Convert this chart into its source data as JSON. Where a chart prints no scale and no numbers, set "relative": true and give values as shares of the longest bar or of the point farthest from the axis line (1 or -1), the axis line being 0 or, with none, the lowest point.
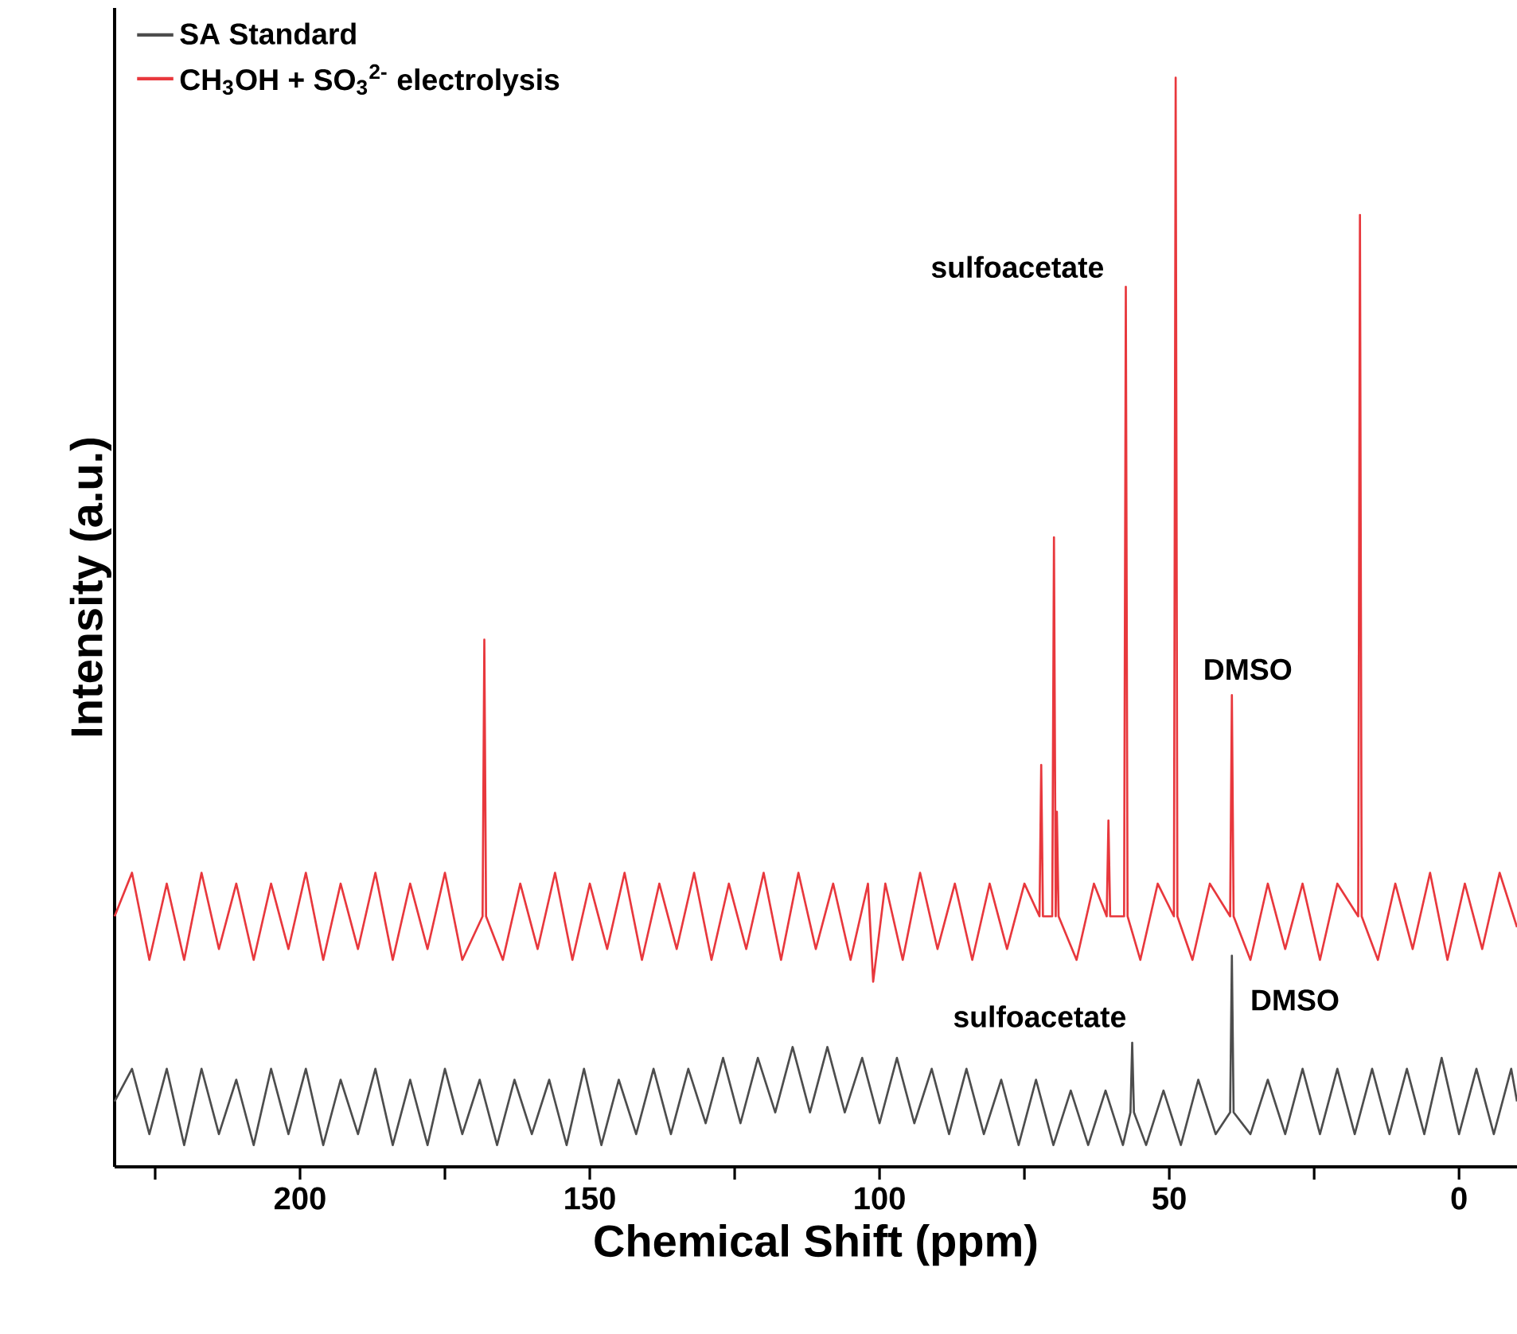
{
  "chart_data": {
    "type": "line",
    "relative": true,
    "xlabel": "Chemical Shift (ppm)",
    "ylabel": "Intensity (a.u.)",
    "xlim": [
      232,
      -10
    ],
    "xticks": [
      {
        "value": 225,
        "label": null
      },
      200,
      {
        "value": 175,
        "label": null
      },
      150,
      {
        "value": 125,
        "label": null
      },
      100,
      {
        "value": 75,
        "label": null
      },
      50,
      {
        "value": 25,
        "label": null
      },
      0
    ],
    "legend": "top left",
    "series": [
      {
        "name": "SA Standard",
        "color": "#4d4d4d",
        "x": [
          232,
          229,
          226,
          223,
          220,
          217,
          214,
          211,
          208,
          205,
          202,
          199,
          196,
          193,
          190,
          187,
          184,
          181,
          178,
          175,
          172,
          169,
          166,
          163,
          160,
          157,
          154,
          151,
          148,
          145,
          142,
          139,
          136,
          133,
          130,
          127,
          124,
          121,
          118,
          115,
          112,
          109,
          106,
          103,
          100,
          97,
          94,
          91,
          88,
          85,
          82,
          79,
          76,
          73,
          70,
          67,
          64,
          61,
          58,
          56.7,
          56.4,
          56.1,
          54,
          51,
          48,
          45,
          42,
          39.5,
          39.2,
          38.9,
          36,
          33,
          30,
          27,
          24,
          21,
          18,
          15,
          12,
          9,
          6,
          3,
          0,
          -3,
          -6,
          -9,
          -10
        ],
        "values": [
          0.06,
          0.09,
          0.03,
          0.09,
          0.02,
          0.09,
          0.03,
          0.08,
          0.02,
          0.09,
          0.03,
          0.09,
          0.02,
          0.08,
          0.03,
          0.09,
          0.02,
          0.08,
          0.02,
          0.09,
          0.03,
          0.08,
          0.02,
          0.08,
          0.03,
          0.08,
          0.02,
          0.09,
          0.02,
          0.08,
          0.03,
          0.09,
          0.03,
          0.09,
          0.04,
          0.1,
          0.04,
          0.1,
          0.05,
          0.11,
          0.05,
          0.11,
          0.05,
          0.1,
          0.04,
          0.1,
          0.04,
          0.09,
          0.03,
          0.09,
          0.03,
          0.08,
          0.02,
          0.08,
          0.02,
          0.07,
          0.02,
          0.07,
          0.02,
          0.05,
          0.114,
          0.05,
          0.02,
          0.07,
          0.02,
          0.08,
          0.03,
          0.05,
          0.194,
          0.05,
          0.03,
          0.08,
          0.03,
          0.09,
          0.03,
          0.09,
          0.03,
          0.09,
          0.03,
          0.09,
          0.03,
          0.1,
          0.03,
          0.09,
          0.03,
          0.09,
          0.06
        ]
      },
      {
        "name": "CH$_{3}$OH + SO$_{3}$$^{2-}$ electrolysis",
        "color": "#e8383d",
        "x": [
          232,
          229,
          226,
          223,
          220,
          217,
          214,
          211,
          208,
          205,
          202,
          199,
          196,
          193,
          190,
          187,
          184,
          181,
          178,
          175,
          172,
          168.5,
          168.2,
          167.9,
          165,
          162,
          159,
          156,
          153,
          150,
          147,
          144,
          141,
          138,
          135,
          132,
          129,
          126,
          123,
          120,
          117,
          114,
          111,
          108,
          105,
          102,
          101.1,
          99,
          96,
          93,
          90,
          87,
          84,
          81,
          78,
          75,
          72.4,
          72.1,
          71.8,
          70.2,
          69.9,
          69.6,
          69.4,
          69.1,
          66,
          63,
          60.8,
          60.5,
          60.2,
          57.8,
          57.5,
          57.2,
          55,
          52,
          49.2,
          48.9,
          48.6,
          46,
          43,
          39.5,
          39.2,
          38.9,
          36,
          33,
          30,
          27,
          24,
          21,
          17.4,
          17.1,
          16.8,
          14,
          11,
          8,
          5,
          2,
          -1,
          -4,
          -7,
          -10
        ],
        "values": [
          0.23,
          0.27,
          0.19,
          0.26,
          0.19,
          0.27,
          0.2,
          0.26,
          0.19,
          0.26,
          0.2,
          0.27,
          0.19,
          0.26,
          0.2,
          0.27,
          0.19,
          0.26,
          0.2,
          0.27,
          0.19,
          0.23,
          0.484,
          0.23,
          0.19,
          0.26,
          0.2,
          0.27,
          0.19,
          0.26,
          0.2,
          0.27,
          0.19,
          0.26,
          0.2,
          0.27,
          0.19,
          0.26,
          0.2,
          0.27,
          0.19,
          0.27,
          0.2,
          0.26,
          0.19,
          0.26,
          0.17,
          0.26,
          0.19,
          0.27,
          0.2,
          0.26,
          0.19,
          0.26,
          0.2,
          0.26,
          0.23,
          0.369,
          0.23,
          0.23,
          0.578,
          0.23,
          0.326,
          0.23,
          0.19,
          0.26,
          0.23,
          0.318,
          0.23,
          0.23,
          0.808,
          0.23,
          0.19,
          0.26,
          0.23,
          1.0,
          0.23,
          0.19,
          0.26,
          0.23,
          0.433,
          0.23,
          0.19,
          0.26,
          0.2,
          0.26,
          0.19,
          0.26,
          0.23,
          0.874,
          0.23,
          0.19,
          0.26,
          0.2,
          0.27,
          0.19,
          0.26,
          0.2,
          0.27,
          0.22
        ]
      }
    ],
    "annotations": [
      {
        "text": "sulfoacetate",
        "x": 57.5,
        "y": 0.808
      },
      {
        "text": "DMSO",
        "x": 39.2,
        "y": 0.433
      },
      {
        "text": "sulfoacetate",
        "x": 56.4,
        "y": 0.114
      },
      {
        "text": "DMSO",
        "x": 39.2,
        "y": 0.194
      }
    ]
  }
}
